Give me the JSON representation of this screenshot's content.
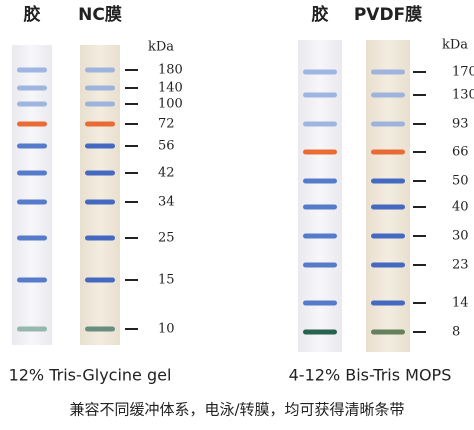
{
  "panels": [
    {
      "lanes": [
        "胶",
        "NC膜"
      ],
      "unit": "kDa",
      "markers": [
        "180",
        "140",
        "100",
        "72",
        "56",
        "42",
        "34",
        "25",
        "15",
        "10"
      ],
      "caption": "12% Tris-Glycine gel"
    },
    {
      "lanes": [
        "胶",
        "PVDF膜"
      ],
      "unit": "kDa",
      "markers": [
        "170",
        "130",
        "93",
        "66",
        "50",
        "40",
        "30",
        "23",
        "14",
        "8"
      ],
      "caption": "4-12% Bis-Tris MOPS"
    }
  ],
  "footer": "兼容不同缓冲体系，电泳/转膜，均可获得清晰条带"
}
